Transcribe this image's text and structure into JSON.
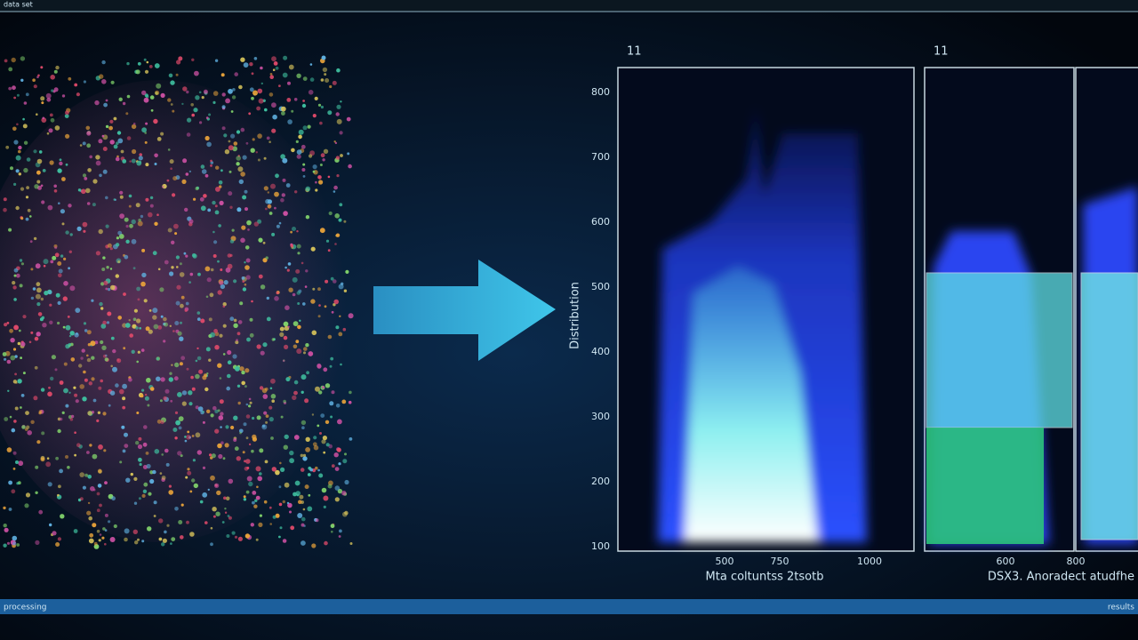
{
  "header": {
    "caption": "data set"
  },
  "left_panel": {
    "title": "11",
    "y_axis_label": "Distribution",
    "y_tick_labels": [
      "800",
      "700",
      "600",
      "500",
      "400",
      "300",
      "200",
      "100"
    ],
    "x_tick_labels": [
      "500",
      "750",
      "1000"
    ],
    "x_axis_label": "Mta coltuntss 2tsotb"
  },
  "right_panel": {
    "title": "11",
    "x_tick_labels": [
      "600",
      "800"
    ],
    "x_axis_label": "DSX3. Anoradect atudfhe"
  },
  "footer": {
    "left": "processing",
    "right": "results"
  }
}
